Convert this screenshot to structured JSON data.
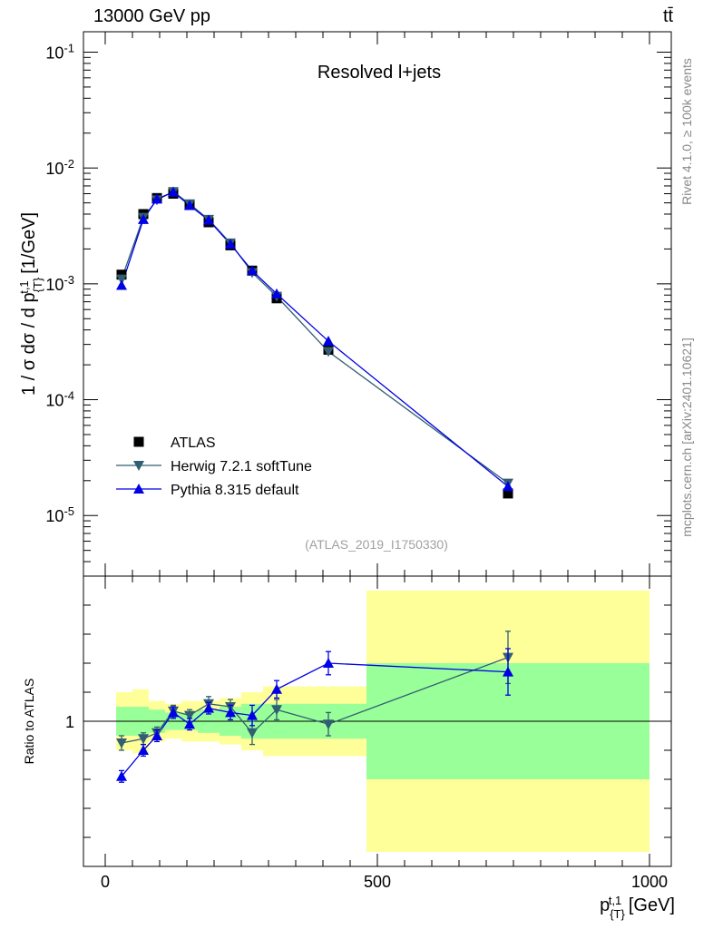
{
  "header": {
    "left": "13000 GeV pp",
    "right": "tt̄"
  },
  "side_texts": {
    "rivet": "Rivet 4.1.0, ≥ 100k events",
    "mcplots": "mcplots.cern.ch [arXiv:2401.10621]"
  },
  "chart_data": [
    {
      "type": "line",
      "title": "Resolved l+jets",
      "watermark": "(ATLAS_2019_I1750330)",
      "ylabel": "1 / σ dσ / d p_{T}^{t,1} [1/GeV]",
      "xlabel": "",
      "xlim": [
        -40,
        1040
      ],
      "ylim": [
        3e-06,
        0.15
      ],
      "yscale": "log",
      "ytick_labels": [
        "10^{-5}",
        "10^{-4}",
        "10^{-3}",
        "10^{-2}",
        "10^{-1}"
      ],
      "legend_position": "left",
      "x": [
        30,
        70,
        95,
        125,
        155,
        190,
        230,
        270,
        315,
        410,
        740
      ],
      "series": [
        {
          "name": "ATLAS",
          "color": "#000000",
          "marker": "square",
          "values": [
            0.0012,
            0.004,
            0.0055,
            0.006,
            0.0048,
            0.0034,
            0.00215,
            0.0013,
            0.00075,
            0.00027,
            1.55e-05
          ]
        },
        {
          "name": "Herwig 7.2.1 softTune",
          "color": "#315e72",
          "marker": "triangle-down",
          "values": [
            0.0011,
            0.00375,
            0.0053,
            0.00625,
            0.0049,
            0.0036,
            0.00225,
            0.00125,
            0.00078,
            0.00026,
            1.9e-05
          ]
        },
        {
          "name": "Pythia 8.315 default",
          "color": "#0000e6",
          "marker": "triangle-up",
          "values": [
            0.00097,
            0.0036,
            0.0054,
            0.0062,
            0.00475,
            0.00355,
            0.0022,
            0.0013,
            0.00082,
            0.00032,
            1.78e-05
          ]
        }
      ]
    },
    {
      "type": "line",
      "ylabel": "Ratio to ATLAS",
      "xlabel": "p_{T}^{t,1} [GeV]",
      "xlim": [
        -40,
        1040
      ],
      "ylim": [
        0.5,
        1.5
      ],
      "yscale": "linear",
      "ytick_label": "1",
      "x_tick_labels": [
        "0",
        "500",
        "1000"
      ],
      "band_edges": [
        20,
        50,
        80,
        110,
        140,
        170,
        210,
        250,
        290,
        340,
        480,
        1000
      ],
      "band_inner": [
        0.05,
        0.05,
        0.04,
        0.03,
        0.03,
        0.04,
        0.05,
        0.06,
        0.06,
        0.06,
        0.2
      ],
      "band_outer": [
        0.1,
        0.11,
        0.07,
        0.06,
        0.07,
        0.07,
        0.08,
        0.1,
        0.12,
        0.12,
        0.45
      ],
      "x": [
        30,
        70,
        95,
        125,
        155,
        190,
        230,
        270,
        315,
        410,
        740
      ],
      "series": [
        {
          "name": "Herwig 7.2.1 softTune",
          "color": "#315e72",
          "marker": "triangle-down",
          "values": [
            0.925,
            0.94,
            0.96,
            1.035,
            1.02,
            1.06,
            1.05,
            0.96,
            1.04,
            0.99,
            1.22
          ],
          "errors": [
            0.025,
            0.02,
            0.02,
            0.02,
            0.02,
            0.025,
            0.025,
            0.04,
            0.035,
            0.04,
            0.09
          ]
        },
        {
          "name": "Pythia 8.315 default",
          "color": "#0000e6",
          "marker": "triangle-up",
          "values": [
            0.81,
            0.9,
            0.95,
            1.03,
            0.99,
            1.045,
            1.03,
            1.02,
            1.11,
            1.2,
            1.17
          ],
          "errors": [
            0.02,
            0.02,
            0.02,
            0.02,
            0.02,
            0.02,
            0.025,
            0.035,
            0.03,
            0.04,
            0.08
          ]
        }
      ]
    }
  ]
}
